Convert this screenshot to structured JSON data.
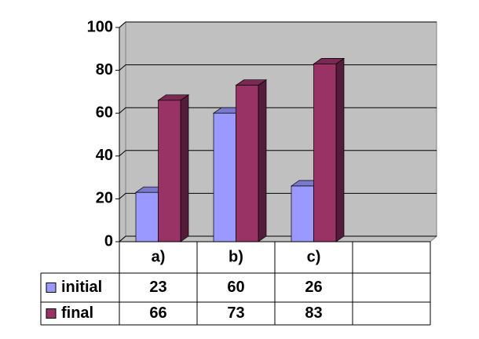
{
  "chart_data": {
    "type": "bar",
    "categories": [
      "a)",
      "b)",
      "c)",
      null
    ],
    "series": [
      {
        "name": "initial",
        "color": "#9999ff",
        "values": [
          23,
          60,
          26,
          null
        ]
      },
      {
        "name": "final",
        "color": "#993366",
        "values": [
          66,
          73,
          83,
          null
        ]
      }
    ],
    "ylim": [
      0,
      100
    ],
    "yticks": [
      0,
      20,
      40,
      60,
      80,
      100
    ],
    "grid": true,
    "wall_color": "#c0c0c0"
  }
}
